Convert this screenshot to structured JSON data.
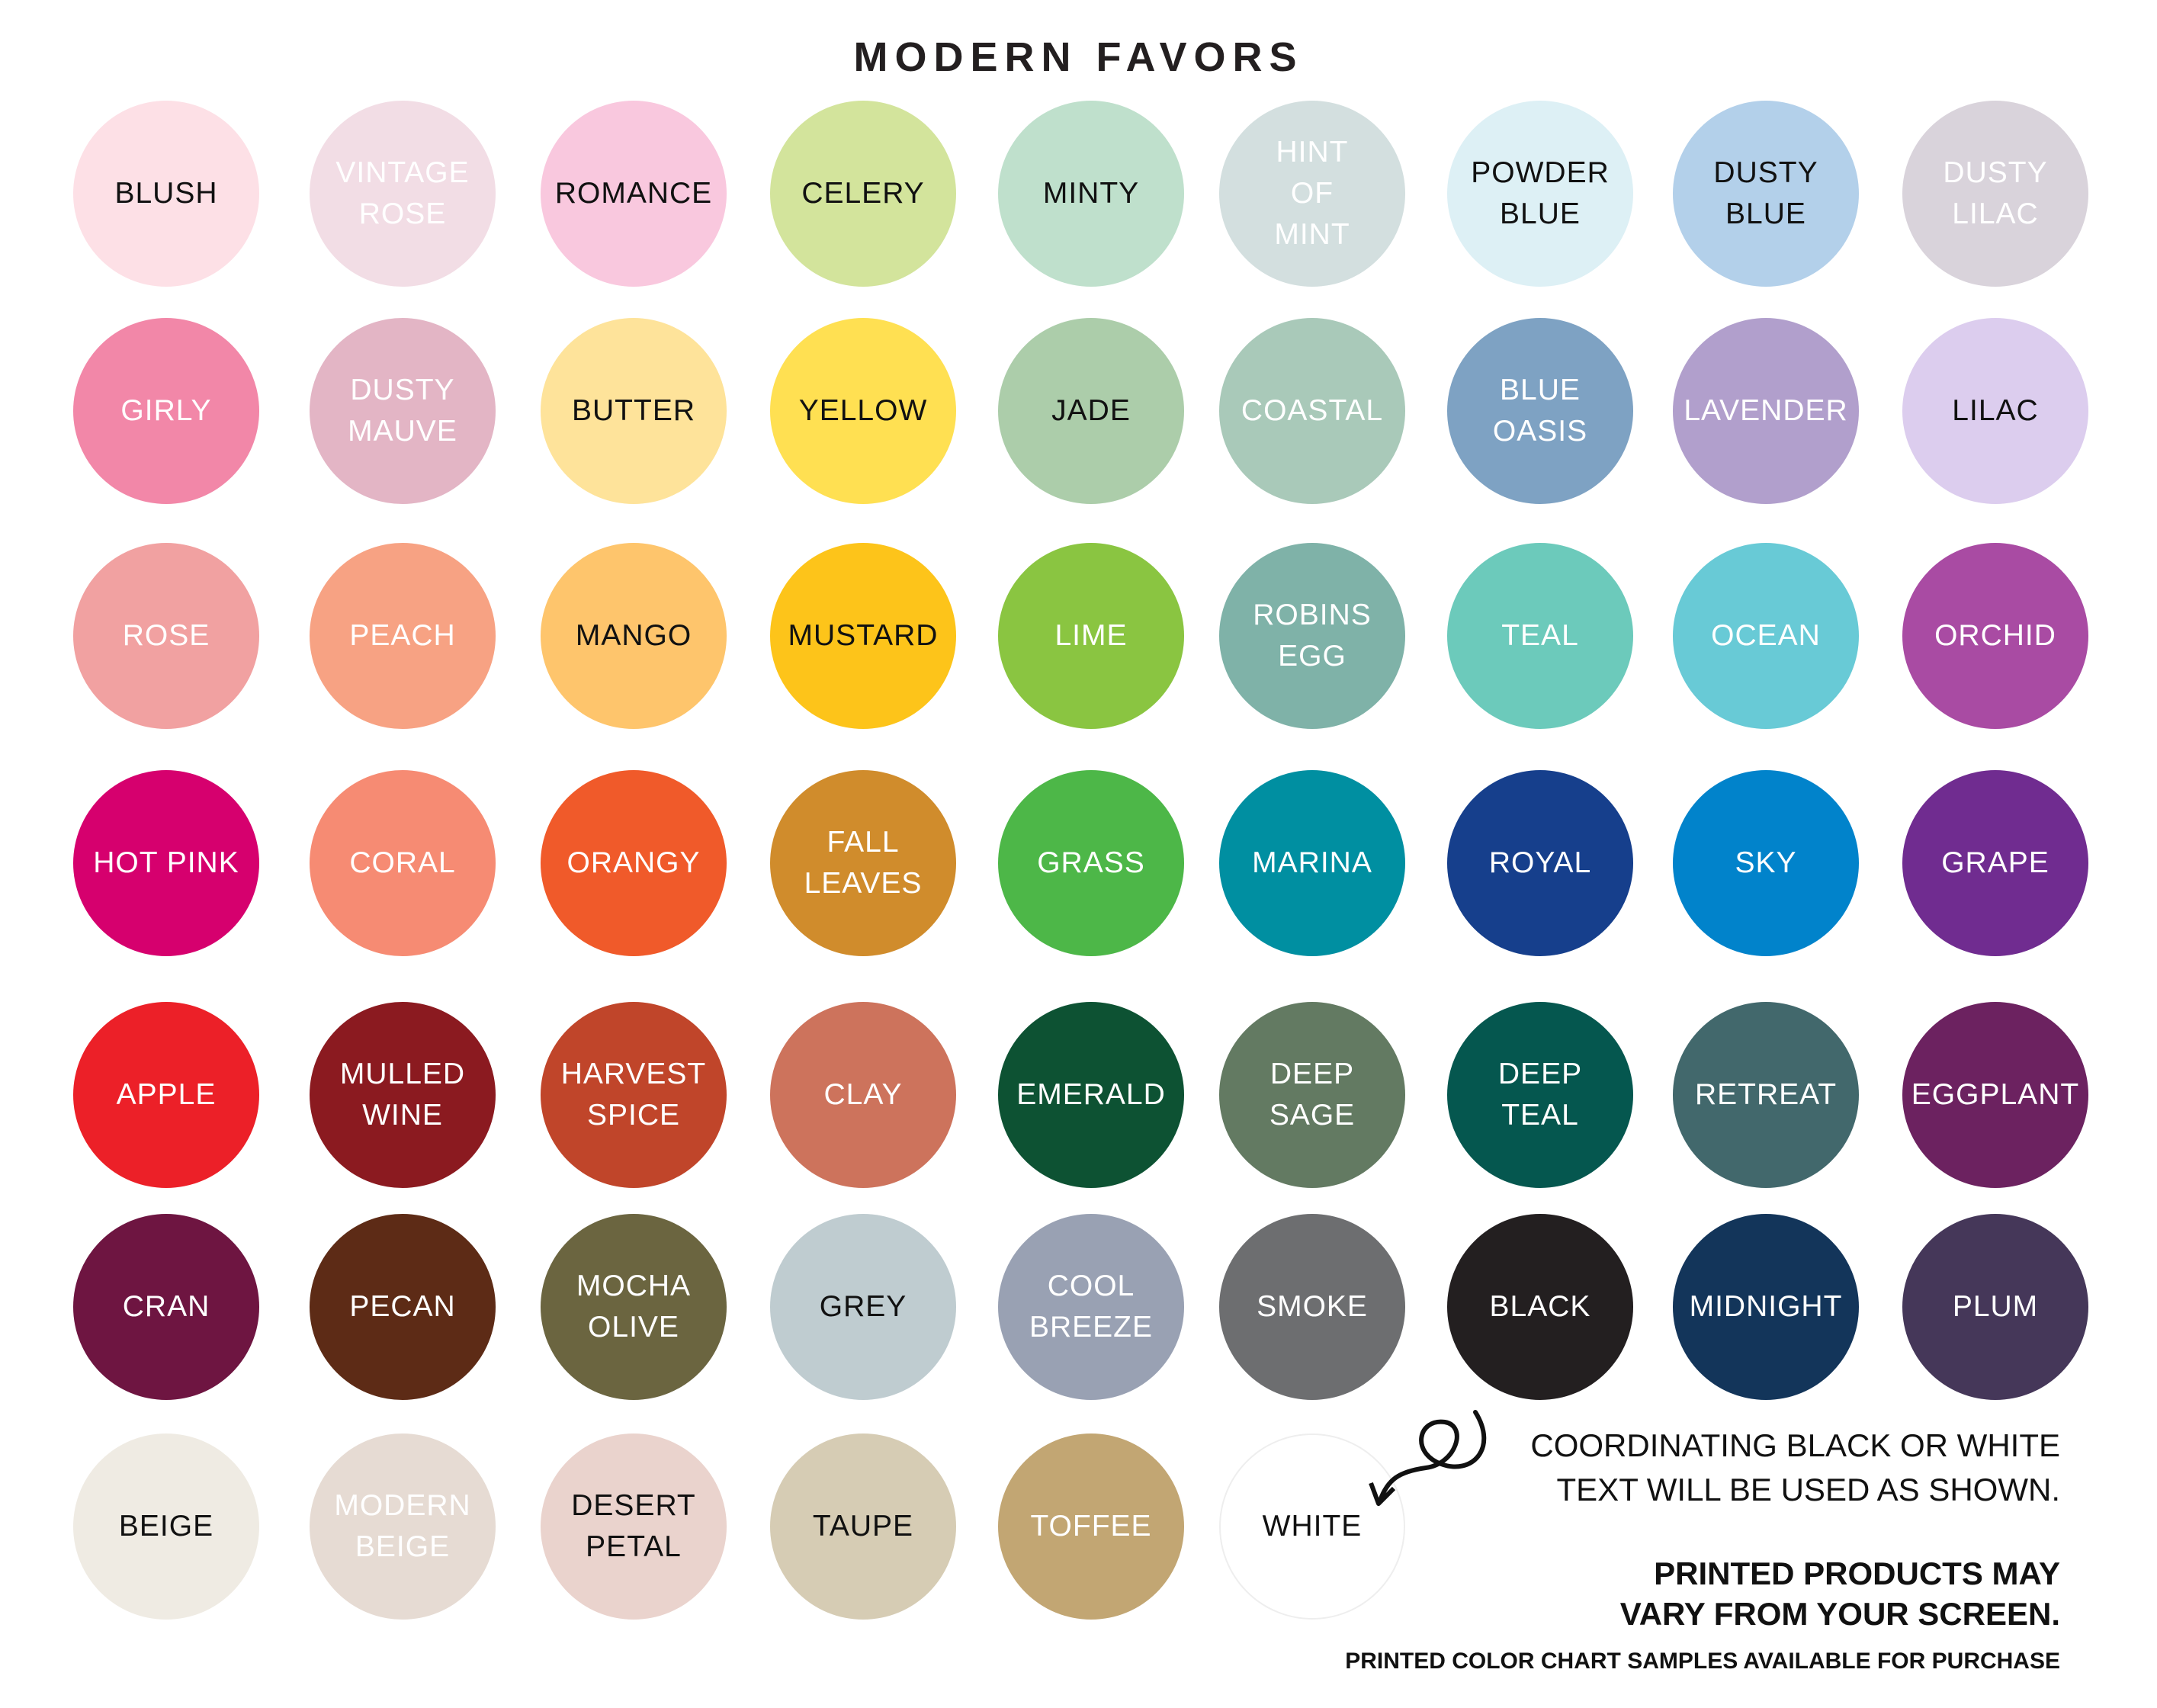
{
  "title": "MODERN FAVORS",
  "swatches": [
    [
      {
        "label": "BLUSH",
        "color": "#fde0e6",
        "text": "#111111"
      },
      {
        "label": "VINTAGE\nROSE",
        "color": "#f2dde5",
        "text": "#ffffff"
      },
      {
        "label": "ROMANCE",
        "color": "#f9c8de",
        "text": "#111111"
      },
      {
        "label": "CELERY",
        "color": "#d3e49c",
        "text": "#111111"
      },
      {
        "label": "MINTY",
        "color": "#bfe0cc",
        "text": "#111111"
      },
      {
        "label": "HINT\nOF\nMINT",
        "color": "#d3dfdf",
        "text": "#ffffff"
      },
      {
        "label": "POWDER\nBLUE",
        "color": "#ddf0f5",
        "text": "#111111"
      },
      {
        "label": "DUSTY\nBLUE",
        "color": "#b3d0ea",
        "text": "#111111"
      },
      {
        "label": "DUSTY\nLILAC",
        "color": "#d9d3db",
        "text": "#ffffff"
      }
    ],
    [
      {
        "label": "GIRLY",
        "color": "#f287a8",
        "text": "#ffffff"
      },
      {
        "label": "DUSTY\nMAUVE",
        "color": "#e3b5c5",
        "text": "#ffffff"
      },
      {
        "label": "BUTTER",
        "color": "#fee39a",
        "text": "#111111"
      },
      {
        "label": "YELLOW",
        "color": "#ffe052",
        "text": "#111111"
      },
      {
        "label": "JADE",
        "color": "#accdaa",
        "text": "#111111"
      },
      {
        "label": "COASTAL",
        "color": "#a9c9b9",
        "text": "#ffffff"
      },
      {
        "label": "BLUE\nOASIS",
        "color": "#7ea2c3",
        "text": "#ffffff"
      },
      {
        "label": "LAVENDER",
        "color": "#b19fcc",
        "text": "#ffffff"
      },
      {
        "label": "LILAC",
        "color": "#dccdee",
        "text": "#111111"
      }
    ],
    [
      {
        "label": "ROSE",
        "color": "#f1a1a1",
        "text": "#ffffff"
      },
      {
        "label": "PEACH",
        "color": "#f7a283",
        "text": "#ffffff"
      },
      {
        "label": "MANGO",
        "color": "#fec56c",
        "text": "#111111"
      },
      {
        "label": "MUSTARD",
        "color": "#fdc41a",
        "text": "#111111"
      },
      {
        "label": "LIME",
        "color": "#8ac541",
        "text": "#ffffff"
      },
      {
        "label": "ROBINS\nEGG",
        "color": "#7fb2a8",
        "text": "#ffffff"
      },
      {
        "label": "TEAL",
        "color": "#6ccabb",
        "text": "#ffffff"
      },
      {
        "label": "OCEAN",
        "color": "#68cad6",
        "text": "#ffffff"
      },
      {
        "label": "ORCHID",
        "color": "#a94ba3",
        "text": "#ffffff"
      }
    ],
    [
      {
        "label": "HOT PINK",
        "color": "#d6006e",
        "text": "#ffffff"
      },
      {
        "label": "CORAL",
        "color": "#f68b73",
        "text": "#ffffff"
      },
      {
        "label": "ORANGY",
        "color": "#f05a2a",
        "text": "#ffffff"
      },
      {
        "label": "FALL\nLEAVES",
        "color": "#d08c2c",
        "text": "#ffffff"
      },
      {
        "label": "GRASS",
        "color": "#4db748",
        "text": "#ffffff"
      },
      {
        "label": "MARINA",
        "color": "#008fa1",
        "text": "#ffffff"
      },
      {
        "label": "ROYAL",
        "color": "#163f8c",
        "text": "#ffffff"
      },
      {
        "label": "SKY",
        "color": "#0183cb",
        "text": "#ffffff"
      },
      {
        "label": "GRAPE",
        "color": "#702c90",
        "text": "#ffffff"
      }
    ],
    [
      {
        "label": "APPLE",
        "color": "#ec2028",
        "text": "#ffffff"
      },
      {
        "label": "MULLED\nWINE",
        "color": "#8b1a20",
        "text": "#ffffff"
      },
      {
        "label": "HARVEST\nSPICE",
        "color": "#c0452a",
        "text": "#ffffff"
      },
      {
        "label": "CLAY",
        "color": "#cd735c",
        "text": "#ffffff"
      },
      {
        "label": "EMERALD",
        "color": "#0d5233",
        "text": "#ffffff"
      },
      {
        "label": "DEEP\nSAGE",
        "color": "#637a62",
        "text": "#ffffff"
      },
      {
        "label": "DEEP\nTEAL",
        "color": "#05574f",
        "text": "#ffffff"
      },
      {
        "label": "RETREAT",
        "color": "#42686c",
        "text": "#ffffff"
      },
      {
        "label": "EGGPLANT",
        "color": "#6c2260",
        "text": "#ffffff"
      }
    ],
    [
      {
        "label": "CRAN",
        "color": "#6e1541",
        "text": "#ffffff"
      },
      {
        "label": "PECAN",
        "color": "#5d2b16",
        "text": "#ffffff"
      },
      {
        "label": "MOCHA\nOLIVE",
        "color": "#6b6540",
        "text": "#ffffff"
      },
      {
        "label": "GREY",
        "color": "#bfccd0",
        "text": "#111111"
      },
      {
        "label": "COOL\nBREEZE",
        "color": "#99a1b3",
        "text": "#ffffff"
      },
      {
        "label": "SMOKE",
        "color": "#6d6e70",
        "text": "#ffffff"
      },
      {
        "label": "BLACK",
        "color": "#231f20",
        "text": "#ffffff"
      },
      {
        "label": "MIDNIGHT",
        "color": "#13355a",
        "text": "#ffffff"
      },
      {
        "label": "PLUM",
        "color": "#453759",
        "text": "#ffffff"
      }
    ],
    [
      {
        "label": "BEIGE",
        "color": "#efebe3",
        "text": "#111111"
      },
      {
        "label": "MODERN\nBEIGE",
        "color": "#e6dbd3",
        "text": "#ffffff"
      },
      {
        "label": "DESERT\nPETAL",
        "color": "#ead3cd",
        "text": "#111111"
      },
      {
        "label": "TAUPE",
        "color": "#d6ccb4",
        "text": "#111111"
      },
      {
        "label": "TOFFEE",
        "color": "#c2a673",
        "text": "#ffffff"
      },
      {
        "label": "WHITE",
        "color": "#ffffff",
        "text": "#111111"
      }
    ]
  ],
  "notes": {
    "line1": "COORDINATING BLACK OR WHITE",
    "line2": "TEXT WILL BE USED AS SHOWN.",
    "line3": "PRINTED PRODUCTS MAY",
    "line4": "VARY FROM YOUR SCREEN.",
    "line5": "PRINTED COLOR CHART SAMPLES AVAILABLE FOR PURCHASE"
  }
}
